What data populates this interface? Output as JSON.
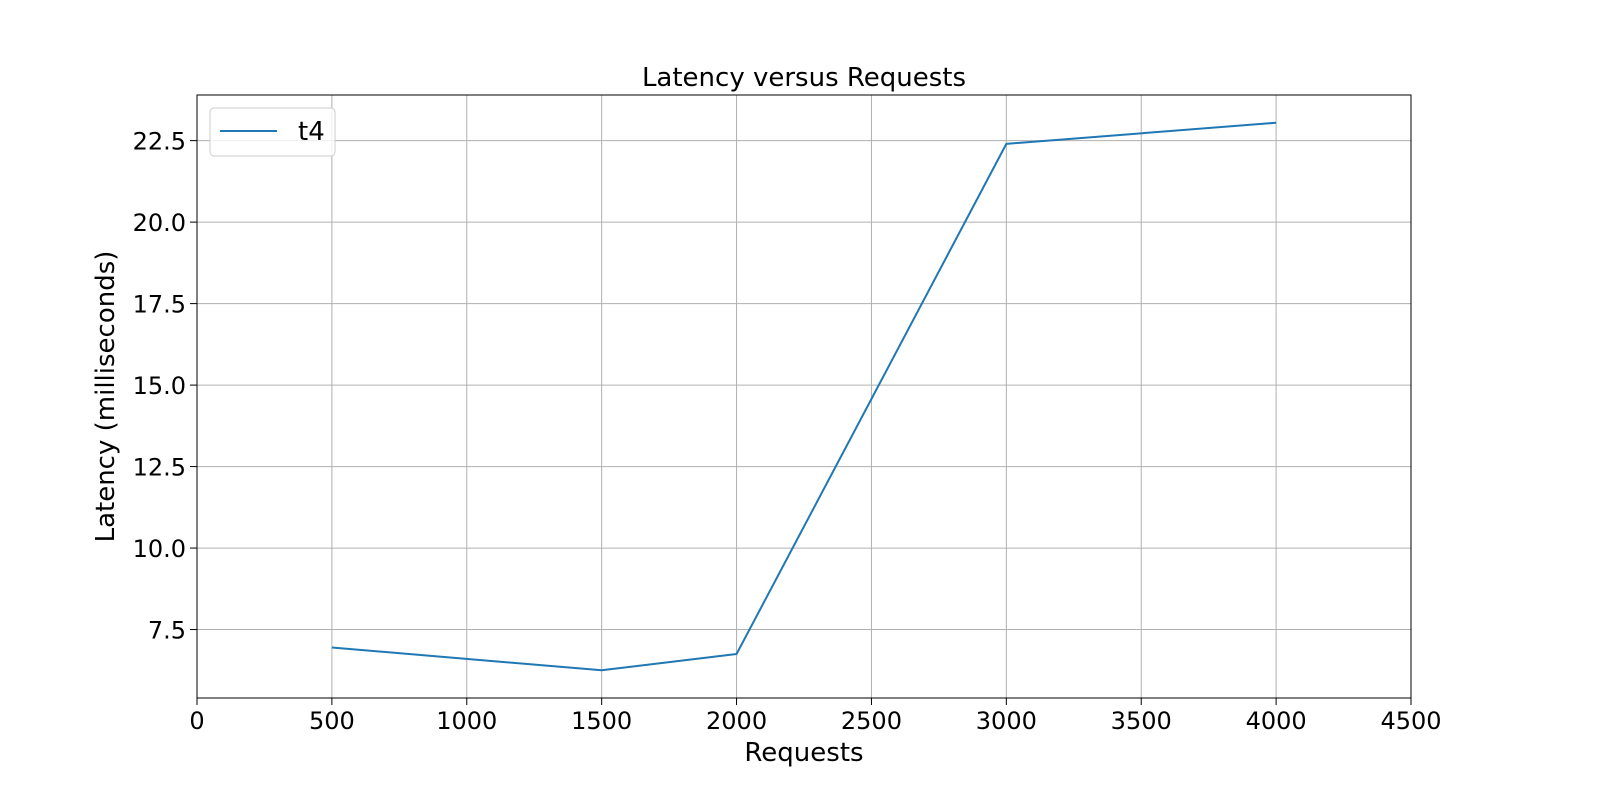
{
  "chart_data": {
    "type": "line",
    "title": "Latency versus Requests",
    "xlabel": "Requests",
    "ylabel": "Latency (milliseconds)",
    "xlim": [
      0,
      4500
    ],
    "ylim": [
      5.4,
      23.9
    ],
    "xticks": [
      0,
      500,
      1000,
      1500,
      2000,
      2500,
      3000,
      3500,
      4000,
      4500
    ],
    "yticks": [
      7.5,
      10.0,
      12.5,
      15.0,
      17.5,
      20.0,
      22.5
    ],
    "grid": true,
    "legend_position": "upper-left",
    "series": [
      {
        "name": "t4",
        "color": "#1f77b4",
        "x": [
          500,
          1500,
          2000,
          3000,
          4000
        ],
        "y": [
          6.95,
          6.25,
          6.75,
          22.4,
          23.05
        ]
      }
    ]
  }
}
